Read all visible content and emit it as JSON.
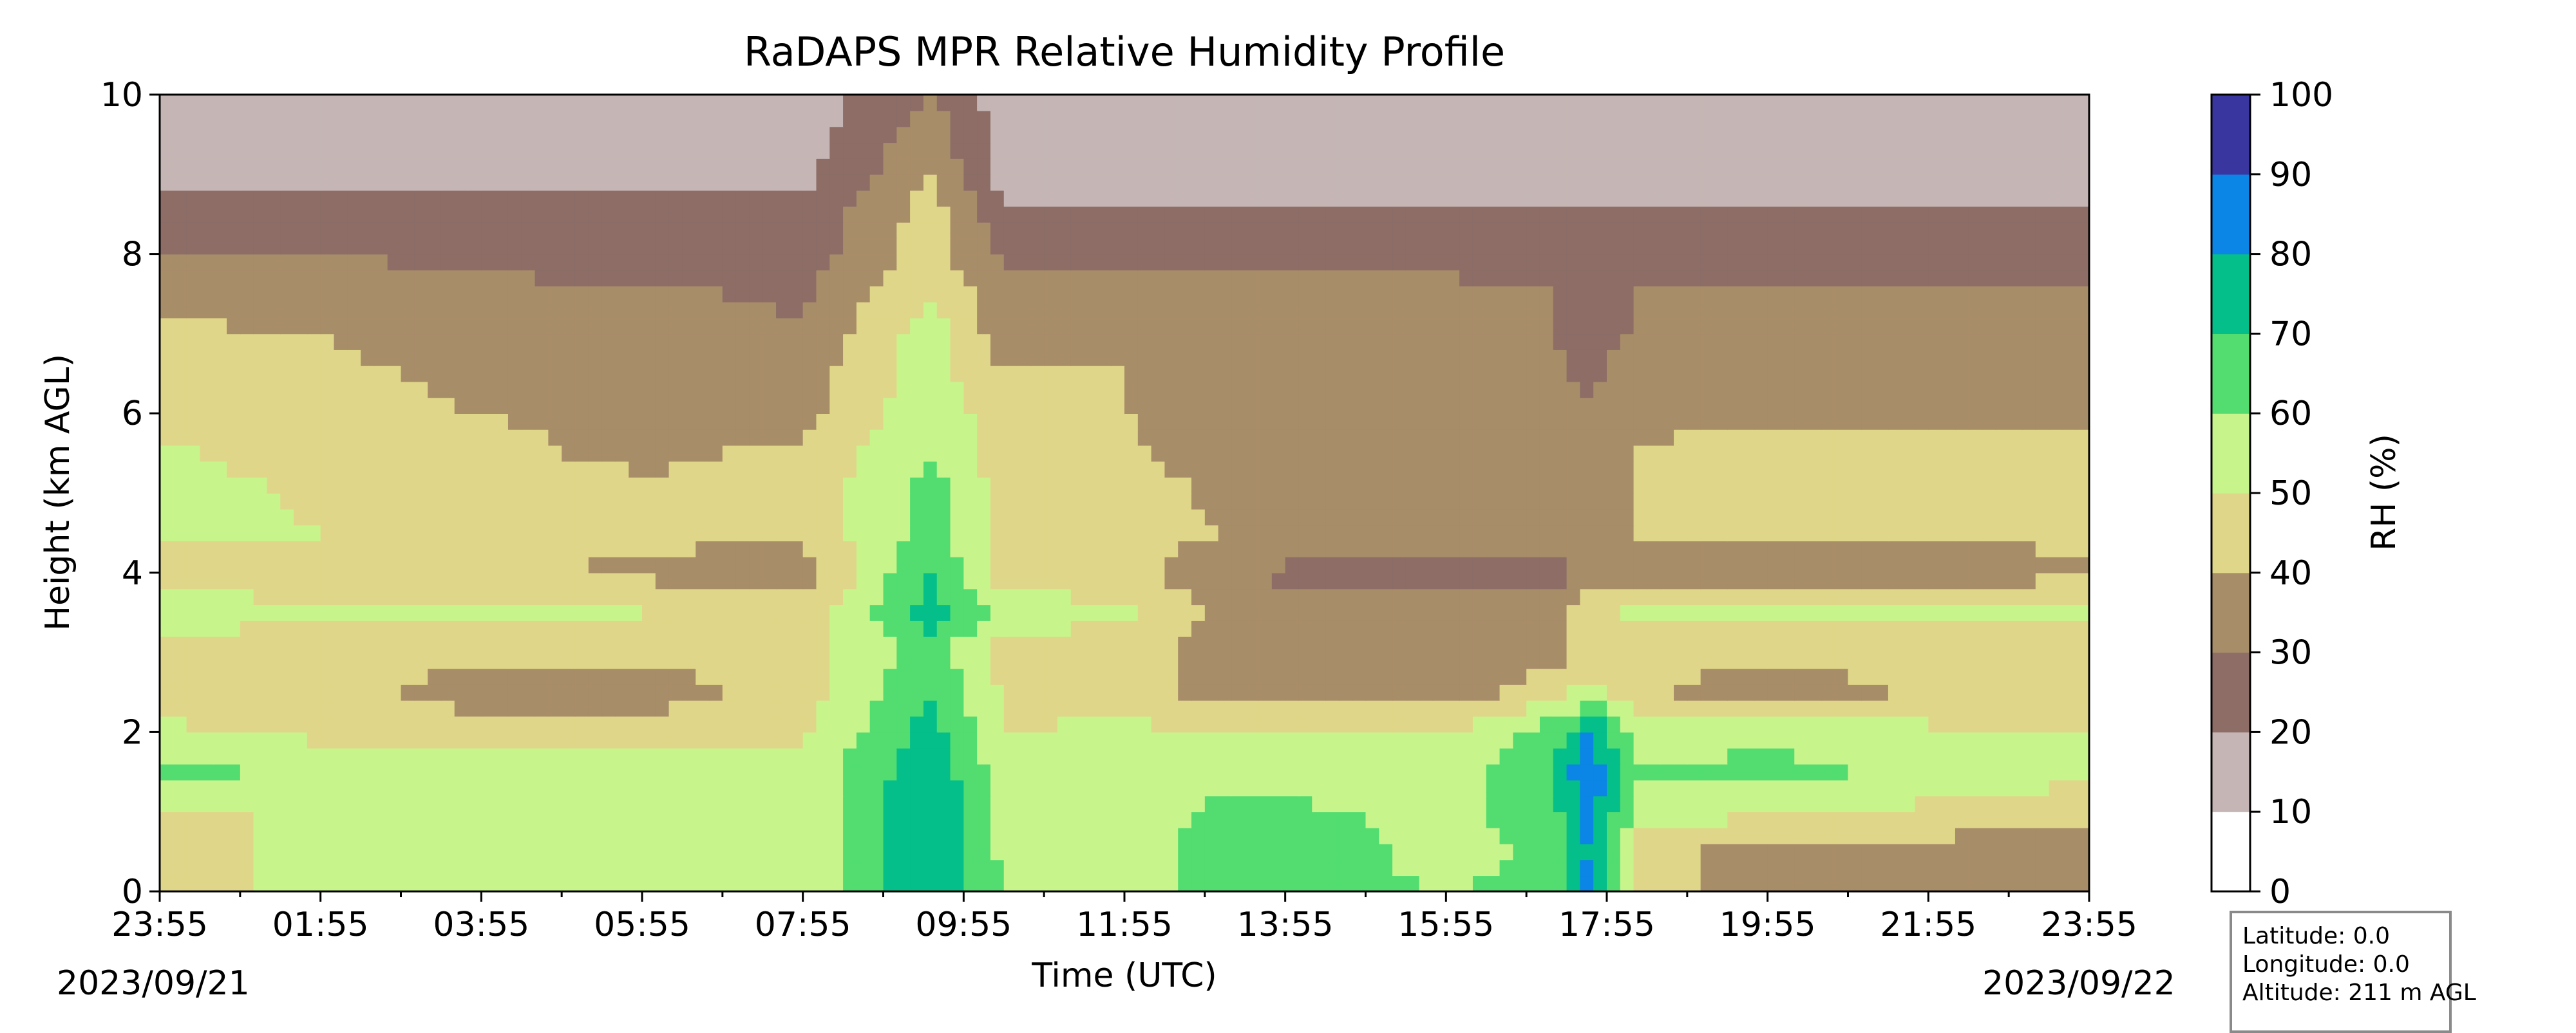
{
  "chart_data": {
    "type": "heatmap",
    "title": "RaDAPS MPR Relative Humidity Profile",
    "xlabel": "Time (UTC)",
    "ylabel": "Height (km AGL)",
    "xlim": [
      "23:55",
      "23:55"
    ],
    "ylim": [
      0,
      10
    ],
    "x_tick_labels": [
      "23:55",
      "01:55",
      "03:55",
      "05:55",
      "07:55",
      "09:55",
      "11:55",
      "13:55",
      "15:55",
      "17:55",
      "19:55",
      "21:55",
      "23:55"
    ],
    "y_tick_labels": [
      "0",
      "2",
      "4",
      "6",
      "8",
      "10"
    ],
    "start_date": "2023/09/21",
    "end_date": "2023/09/22",
    "colorbar": {
      "label": "RH (%)",
      "tick_labels": [
        "0",
        "10",
        "20",
        "30",
        "40",
        "50",
        "60",
        "70",
        "80",
        "90",
        "100"
      ],
      "levels": [
        0,
        10,
        20,
        30,
        40,
        50,
        60,
        70,
        80,
        90,
        100
      ],
      "colors": [
        "#ffffff",
        "#c5b6b5",
        "#8d6d66",
        "#a88d69",
        "#e0d689",
        "#c8f48c",
        "#53dd70",
        "#04bf8a",
        "#0b85e6",
        "#3a36a0"
      ]
    },
    "profile_heights_km": [
      0.0,
      0.5,
      1.0,
      1.5,
      2.0,
      2.5,
      3.0,
      3.5,
      4.0,
      4.5,
      5.0,
      5.5,
      6.0,
      6.5,
      7.0,
      7.5,
      8.0,
      8.5,
      9.0,
      9.5,
      10.0
    ],
    "profile_times_h": [
      0,
      2,
      4,
      6,
      8,
      9.6,
      10.5,
      12,
      13.2,
      14,
      16,
      17.3,
      17.8,
      18.4,
      20,
      22,
      24
    ],
    "rh_values": [
      [
        47,
        52,
        52,
        52,
        52,
        80,
        60,
        58,
        62,
        62,
        60,
        62,
        85,
        45,
        35,
        35,
        35
      ],
      [
        47,
        52,
        52,
        52,
        52,
        80,
        57,
        55,
        65,
        65,
        57,
        62,
        82,
        45,
        35,
        35,
        35
      ],
      [
        47,
        52,
        52,
        52,
        52,
        80,
        57,
        55,
        62,
        62,
        57,
        65,
        85,
        55,
        52,
        48,
        45
      ],
      [
        65,
        55,
        55,
        55,
        52,
        78,
        55,
        55,
        55,
        55,
        55,
        70,
        88,
        60,
        65,
        55,
        52
      ],
      [
        52,
        48,
        45,
        45,
        48,
        75,
        50,
        52,
        52,
        50,
        50,
        65,
        80,
        55,
        55,
        52,
        50
      ],
      [
        45,
        45,
        35,
        35,
        45,
        70,
        48,
        45,
        35,
        35,
        35,
        45,
        55,
        42,
        35,
        42,
        45
      ],
      [
        48,
        42,
        42,
        42,
        45,
        65,
        45,
        45,
        35,
        35,
        35,
        35,
        45,
        42,
        42,
        42,
        42
      ],
      [
        55,
        52,
        52,
        50,
        45,
        75,
        55,
        52,
        38,
        35,
        35,
        35,
        48,
        52,
        52,
        52,
        52
      ],
      [
        45,
        45,
        42,
        38,
        35,
        70,
        45,
        45,
        30,
        28,
        25,
        25,
        35,
        35,
        35,
        35,
        38
      ],
      [
        52,
        50,
        45,
        42,
        42,
        65,
        45,
        45,
        40,
        38,
        38,
        35,
        30,
        42,
        42,
        42,
        42
      ],
      [
        55,
        48,
        45,
        42,
        42,
        65,
        45,
        45,
        38,
        35,
        35,
        35,
        30,
        42,
        42,
        45,
        45
      ],
      [
        52,
        45,
        42,
        38,
        42,
        60,
        45,
        42,
        35,
        35,
        38,
        35,
        30,
        40,
        45,
        45,
        45
      ],
      [
        45,
        42,
        40,
        38,
        35,
        60,
        42,
        40,
        35,
        35,
        35,
        35,
        30,
        38,
        38,
        38,
        38
      ],
      [
        44,
        42,
        38,
        35,
        35,
        55,
        40,
        40,
        35,
        32,
        32,
        32,
        28,
        35,
        35,
        35,
        35
      ],
      [
        42,
        40,
        35,
        32,
        32,
        55,
        35,
        35,
        32,
        32,
        32,
        30,
        25,
        32,
        32,
        32,
        32
      ],
      [
        35,
        35,
        32,
        32,
        28,
        50,
        32,
        32,
        32,
        32,
        32,
        30,
        25,
        30,
        30,
        30,
        30
      ],
      [
        30,
        30,
        28,
        25,
        25,
        45,
        28,
        28,
        28,
        28,
        28,
        25,
        22,
        25,
        25,
        25,
        25
      ],
      [
        25,
        25,
        22,
        22,
        22,
        45,
        22,
        22,
        22,
        22,
        22,
        22,
        20,
        22,
        22,
        22,
        22
      ],
      [
        18,
        18,
        18,
        18,
        18,
        40,
        15,
        15,
        15,
        15,
        15,
        15,
        18,
        15,
        15,
        15,
        15
      ],
      [
        15,
        15,
        15,
        15,
        15,
        35,
        15,
        15,
        15,
        15,
        15,
        15,
        15,
        15,
        15,
        15,
        15
      ],
      [
        15,
        15,
        15,
        15,
        15,
        30,
        15,
        15,
        15,
        15,
        15,
        15,
        15,
        15,
        15,
        15,
        15
      ]
    ],
    "legend": "none",
    "grid": false
  },
  "info_box": {
    "latitude": "Latitude: 0.0",
    "longitude": "Longitude: 0.0",
    "altitude": "Altitude: 211 m AGL"
  }
}
